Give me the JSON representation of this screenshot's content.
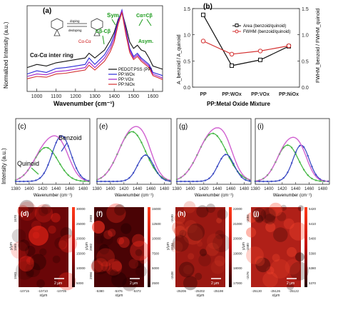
{
  "panels": {
    "a": {
      "letter": "(a)",
      "ylabel": "Normalized Intensity (a.u.)",
      "xlabel": "Wavenumber (cm⁻¹)",
      "annotations": {
        "sym": "Sym.",
        "asym": "Asym.",
        "cbcb": "Cβ-Cβ",
        "cacb": "Cα=Cβ",
        "ring": "Cα-Cα inter ring",
        "caca_mid": "Cα-Cα",
        "doping": "doping",
        "dedoping": "dedoping"
      },
      "legend": [
        "PEDOT:PSS (PP)",
        "PP:WOx",
        "PP:VOx",
        "PP:NiOx"
      ],
      "colors": [
        "#111111",
        "#2a2ad6",
        "#a020c8",
        "#d43030"
      ],
      "chart_data": {
        "type": "line",
        "xlim": [
          950,
          1650
        ],
        "xticks": [
          1000,
          1100,
          1200,
          1300,
          1400,
          1500,
          1600
        ],
        "series": [
          {
            "name": "PEDOT:PSS (PP)",
            "x": [
              950,
              1000,
              1050,
              1100,
              1150,
              1200,
              1250,
              1270,
              1300,
              1350,
              1380,
              1400,
              1420,
              1440,
              1460,
              1480,
              1500,
              1520,
              1540,
              1560,
              1580,
              1600,
              1650
            ],
            "y": [
              0.28,
              0.32,
              0.3,
              0.34,
              0.36,
              0.38,
              0.4,
              0.46,
              0.4,
              0.5,
              0.62,
              0.72,
              0.88,
              0.98,
              0.8,
              0.6,
              0.52,
              0.56,
              0.5,
              0.48,
              0.4,
              0.3,
              0.26
            ]
          },
          {
            "name": "PP:WOx",
            "x": [
              950,
              1000,
              1050,
              1100,
              1150,
              1200,
              1250,
              1270,
              1300,
              1350,
              1380,
              1400,
              1420,
              1440,
              1460,
              1480,
              1500,
              1520,
              1540,
              1560,
              1580,
              1600,
              1650
            ],
            "y": [
              0.2,
              0.24,
              0.22,
              0.27,
              0.28,
              0.3,
              0.32,
              0.4,
              0.32,
              0.44,
              0.56,
              0.68,
              0.86,
              1.0,
              0.76,
              0.52,
              0.42,
              0.46,
              0.4,
              0.36,
              0.32,
              0.22,
              0.18
            ]
          },
          {
            "name": "PP:VOx",
            "x": [
              950,
              1000,
              1050,
              1100,
              1150,
              1200,
              1250,
              1270,
              1300,
              1350,
              1380,
              1400,
              1420,
              1440,
              1460,
              1480,
              1500,
              1520,
              1540,
              1560,
              1580,
              1600,
              1650
            ],
            "y": [
              0.17,
              0.2,
              0.19,
              0.23,
              0.24,
              0.26,
              0.28,
              0.35,
              0.28,
              0.4,
              0.52,
              0.64,
              0.84,
              0.99,
              0.74,
              0.5,
              0.4,
              0.44,
              0.38,
              0.34,
              0.3,
              0.2,
              0.15
            ]
          },
          {
            "name": "PP:NiOx",
            "x": [
              950,
              1000,
              1050,
              1100,
              1150,
              1200,
              1250,
              1270,
              1300,
              1350,
              1380,
              1400,
              1420,
              1440,
              1460,
              1480,
              1500,
              1520,
              1540,
              1560,
              1580,
              1600,
              1650
            ],
            "y": [
              0.14,
              0.17,
              0.16,
              0.2,
              0.21,
              0.23,
              0.25,
              0.31,
              0.25,
              0.36,
              0.48,
              0.6,
              0.82,
              0.97,
              0.7,
              0.47,
              0.38,
              0.42,
              0.36,
              0.32,
              0.28,
              0.18,
              0.13
            ]
          }
        ]
      }
    },
    "b": {
      "letter": "(b)",
      "xlabel": "PP:Metal Oxide Mixture",
      "ylabel_left": "A_benzoid / A_quinoid",
      "ylabel_right": "FWHM_benzoid / FWHM_quinoid",
      "legend": [
        "Area (benzoid/quinoid)",
        "FWHM (benzoid/quinoid)"
      ],
      "colors": [
        "#111111",
        "#d43030"
      ],
      "chart_data": {
        "type": "line",
        "categories": [
          "PP",
          "PP:WOx",
          "PP:VOx",
          "PP:NiOx"
        ],
        "ylim": [
          0.0,
          1.5
        ],
        "yticks": [
          0.0,
          0.5,
          1.0,
          1.5
        ],
        "series": [
          {
            "name": "Area (benzoid/quinoid)",
            "values": [
              1.38,
              0.41,
              0.52,
              0.78
            ]
          },
          {
            "name": "FWHM (benzoid/quinoid)",
            "values": [
              0.88,
              0.63,
              0.69,
              0.79
            ]
          }
        ]
      }
    },
    "fits": {
      "ylabel": "Intensity (a.u.)",
      "xlabel": "Wavenumber (cm⁻¹)",
      "xticks": [
        1380,
        1400,
        1420,
        1440,
        1460,
        1480
      ],
      "labels": {
        "quinoid": "Quinoid",
        "benzoid": "Benzoid"
      },
      "colors": {
        "total": "#d060d0",
        "quinoid": "#3cb43c",
        "benzoid": "#3040c0"
      },
      "chart_data": [
        {
          "letter": "(c)",
          "type": "line",
          "xlim": [
            1380,
            1490
          ],
          "quinoid": {
            "center": 1425,
            "amp": 0.58,
            "width": 18
          },
          "benzoid": {
            "center": 1448,
            "amp": 0.78,
            "width": 14
          }
        },
        {
          "letter": "(e)",
          "type": "line",
          "xlim": [
            1380,
            1490
          ],
          "quinoid": {
            "center": 1432,
            "amp": 0.85,
            "width": 20
          },
          "benzoid": {
            "center": 1452,
            "amp": 0.45,
            "width": 12
          }
        },
        {
          "letter": "(g)",
          "type": "line",
          "xlim": [
            1380,
            1490
          ],
          "quinoid": {
            "center": 1433,
            "amp": 0.82,
            "width": 21
          },
          "benzoid": {
            "center": 1453,
            "amp": 0.46,
            "width": 12
          }
        },
        {
          "letter": "(i)",
          "type": "line",
          "xlim": [
            1380,
            1490
          ],
          "quinoid": {
            "center": 1428,
            "amp": 0.62,
            "width": 16
          },
          "benzoid": {
            "center": 1448,
            "amp": 0.62,
            "width": 12
          }
        }
      ]
    },
    "maps": {
      "xlabel": "x/μm",
      "ylabel": "y/μm",
      "scale": "2 μm",
      "items": [
        {
          "letter": "(d)",
          "bar_ticks": [
            "30000",
            "25000",
            "20000",
            "15000",
            "10000",
            "5000"
          ],
          "x_ticks": [
            "-10715",
            "-10710",
            "-10705"
          ],
          "y_ticks": [
            "1570",
            "1565",
            "1560"
          ],
          "base": "#6a0608",
          "hot": "#ff2a1a"
        },
        {
          "letter": "(f)",
          "bar_ticks": [
            "15000",
            "12500",
            "10000",
            "7500",
            "5000",
            "2500"
          ],
          "x_ticks": [
            "-5380",
            "-5376",
            "-5372"
          ],
          "y_ticks": [
            "2988",
            "2992",
            "2996"
          ],
          "base": "#4a0305",
          "hot": "#ff3020"
        },
        {
          "letter": "(h)",
          "bar_ticks": [
            "22000",
            "21000",
            "20000",
            "19000",
            "18000",
            "17000"
          ],
          "x_ticks": [
            "-25206",
            "-25202",
            "-25198"
          ],
          "y_ticks": [
            "-1530",
            "-1534",
            "-1538"
          ],
          "base": "#9a1812",
          "hot": "#e04028"
        },
        {
          "letter": "(j)",
          "bar_ticks": [
            "5420",
            "5410",
            "5400",
            "5390",
            "5380",
            "5370"
          ],
          "x_ticks": [
            "-25130",
            "-25126",
            "-25122"
          ],
          "y_ticks": [
            "-1584",
            "-1580",
            "-1576"
          ],
          "base": "#b02018",
          "hot": "#ff4a30"
        }
      ]
    }
  }
}
